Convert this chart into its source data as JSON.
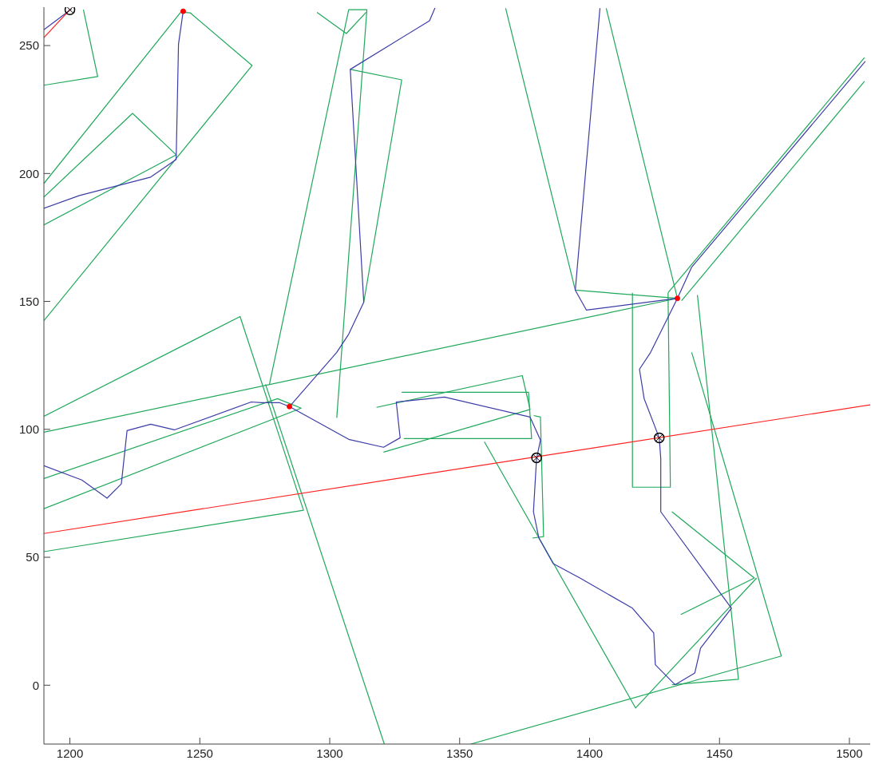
{
  "chart_data": {
    "type": "line",
    "xlim": [
      1190,
      1508
    ],
    "ylim": [
      -23,
      265
    ],
    "xticks": [
      1200,
      1250,
      1300,
      1350,
      1400,
      1450,
      1500
    ],
    "yticks": [
      0,
      50,
      100,
      150,
      200,
      250
    ],
    "series": [
      {
        "color": "#1fa85a",
        "x": [
          1205.2,
          1210.7,
          1190
        ],
        "values": [
          264,
          237.9,
          234.5
        ]
      },
      {
        "color": "#1fa85a",
        "x": [
          1190,
          1242.7,
          1246.3,
          1270.1,
          1190
        ],
        "values": [
          196.1,
          263.1,
          262.8,
          242.2,
          142.5
        ]
      },
      {
        "color": "#1fa85a",
        "x": [
          1190,
          1224.1,
          1240.9,
          1190
        ],
        "values": [
          190.8,
          223.5,
          207.3,
          179.9
        ]
      },
      {
        "color": "#1fa85a",
        "x": [
          1307.9,
          1327.7,
          1313.1
        ],
        "values": [
          240.7,
          236.6,
          149.7
        ]
      },
      {
        "color": "#1fa85a",
        "x": [
          1302.7,
          1314.3,
          1307.3,
          1276.8
        ],
        "values": [
          104.5,
          264,
          264,
          117.6
        ]
      },
      {
        "color": "#1fa85a",
        "x": [
          1190,
          1265.5,
          1289.9,
          1190
        ],
        "values": [
          105.1,
          144.1,
          68.4,
          52.2
        ]
      },
      {
        "color": "#1fa85a",
        "x": [
          1190,
          1433.8
        ],
        "values": [
          98.9,
          151.2
        ]
      },
      {
        "color": "#1fa85a",
        "x": [
          1367.7,
          1394.5,
          1433.8,
          1406.4
        ],
        "values": [
          264.6,
          154.4,
          151.2,
          264.6
        ]
      },
      {
        "color": "#1fa85a",
        "x": [
          1275.3,
          1321
        ],
        "values": [
          117.6,
          -23
        ]
      },
      {
        "color": "#1fa85a",
        "x": [
          1354.3,
          1473.8,
          1439.3
        ],
        "values": [
          -23,
          11.4,
          130.1
        ]
      },
      {
        "color": "#1fa85a",
        "x": [
          1416.5,
          1416.5,
          1431.1,
          1430.2
        ],
        "values": [
          153.4,
          77.4,
          77.4,
          153.4
        ]
      },
      {
        "color": "#1fa85a",
        "x": [
          1435.1,
          1463.4,
          1431.7
        ],
        "values": [
          27.6,
          41.9,
          67.8
        ]
      },
      {
        "color": "#1fa85a",
        "x": [
          1441.5,
          1457.3,
          1431.7
        ],
        "values": [
          152.5,
          2.3,
          0.2
        ]
      },
      {
        "color": "#1fa85a",
        "x": [
          1430.2,
          1505.8
        ],
        "values": [
          153.4,
          245.3
        ]
      },
      {
        "color": "#1fa85a",
        "x": [
          1435.4,
          1505.8
        ],
        "values": [
          150.3,
          236
        ]
      },
      {
        "color": "#1fa85a",
        "x": [
          1190,
          1279.9,
          1289,
          1190
        ],
        "values": [
          80.8,
          112,
          108.3,
          69
        ]
      },
      {
        "color": "#1fa85a",
        "x": [
          1359.5,
          1417.7,
          1464.3
        ],
        "values": [
          95.2,
          -8.9,
          41.9
        ]
      },
      {
        "color": "#1fa85a",
        "x": [
          1318,
          1374.1,
          1377.1,
          1320.7
        ],
        "values": [
          108.6,
          121,
          107.8,
          91.1
        ]
      },
      {
        "color": "#1fa85a",
        "x": [
          1327.7,
          1376.5,
          1377.7,
          1328.5
        ],
        "values": [
          114.5,
          114.5,
          96.4,
          96.4
        ]
      },
      {
        "color": "#1fa85a",
        "x": [
          1378.5,
          1381.1,
          1382.3,
          1378
        ],
        "values": [
          105.4,
          104.8,
          58.1,
          57.5
        ]
      },
      {
        "color": "#1fa85a",
        "x": [
          1295.1,
          1306.4,
          1314
        ],
        "values": [
          263,
          254.7,
          263
        ]
      },
      {
        "color": "#3c3ca8",
        "x": [
          1190,
          1200.6
        ],
        "values": [
          256.2,
          264.3
        ]
      },
      {
        "color": "#3c3ca8",
        "x": [
          1190,
          1203.7,
          1231.1,
          1240.9,
          1241.8,
          1243.6
        ],
        "values": [
          186.4,
          191.4,
          198.6,
          205.5,
          250.6,
          263.4
        ]
      },
      {
        "color": "#3c3ca8",
        "x": [
          1340.5,
          1338.4,
          1307.9,
          1313.1,
          1307.3,
          1302.7,
          1284.5
        ],
        "values": [
          264.7,
          259.7,
          240.7,
          149.7,
          137.2,
          130.1,
          108.9
        ]
      },
      {
        "color": "#3c3ca8",
        "x": [
          1284.5,
          1280.8,
          1273.8,
          1269.8,
          1240.2,
          1231.1,
          1222,
          1219.8,
          1214.3,
          1204.6,
          1190
        ],
        "values": [
          108.9,
          110.4,
          110.4,
          110.7,
          99.8,
          102,
          99.5,
          78.7,
          73.1,
          80.2,
          85.8
        ]
      },
      {
        "color": "#3c3ca8",
        "x": [
          1284.5,
          1307.3,
          1320.7,
          1327.1,
          1325.6,
          1344.2,
          1377.1,
          1381.1,
          1379.6,
          1378.4,
          1380.5,
          1386,
          1396.3,
          1416.5,
          1424.7,
          1425.3,
          1432.9,
          1440.5,
          1442.7,
          1454.6,
          1427.4,
          1427.4,
          1427.4,
          1426.8,
          1421,
          1419.2,
          1423.5,
          1433.8
        ],
        "values": [
          108.9,
          96.1,
          93,
          96.7,
          110.7,
          112.6,
          104.8,
          95.8,
          88.6,
          67.8,
          57.5,
          47.5,
          41.9,
          30.1,
          20.4,
          8,
          0.2,
          4.8,
          14.5,
          30.1,
          67.8,
          76.8,
          88.6,
          96.7,
          112,
          123.5,
          130.1,
          151.2
        ]
      },
      {
        "color": "#3c3ca8",
        "x": [
          1404,
          1394.5,
          1398.8,
          1433.8
        ],
        "values": [
          264.6,
          154.4,
          146.6,
          151.2
        ]
      },
      {
        "color": "#3c3ca8",
        "x": [
          1433.8,
          1439.3,
          1506.1
        ],
        "values": [
          151.2,
          163.4,
          243.8
        ]
      },
      {
        "color": "#ff2020",
        "x": [
          1190,
          1508
        ],
        "values": [
          59.3,
          109.6
        ]
      },
      {
        "color": "#ff2020",
        "x": [
          1190,
          1200
        ],
        "values": [
          253.1,
          264
        ]
      },
      {
        "type": "scatter",
        "color": "#ff0000",
        "x": [
          1243.6,
          1284.5,
          1433.8
        ],
        "values": [
          263.4,
          108.9,
          151.2
        ]
      },
      {
        "type": "scatter",
        "marker": "circle",
        "color": "#000000",
        "x": [
          1200,
          1379.6,
          1426.8
        ],
        "values": [
          264,
          88.9,
          96.7
        ]
      }
    ]
  }
}
